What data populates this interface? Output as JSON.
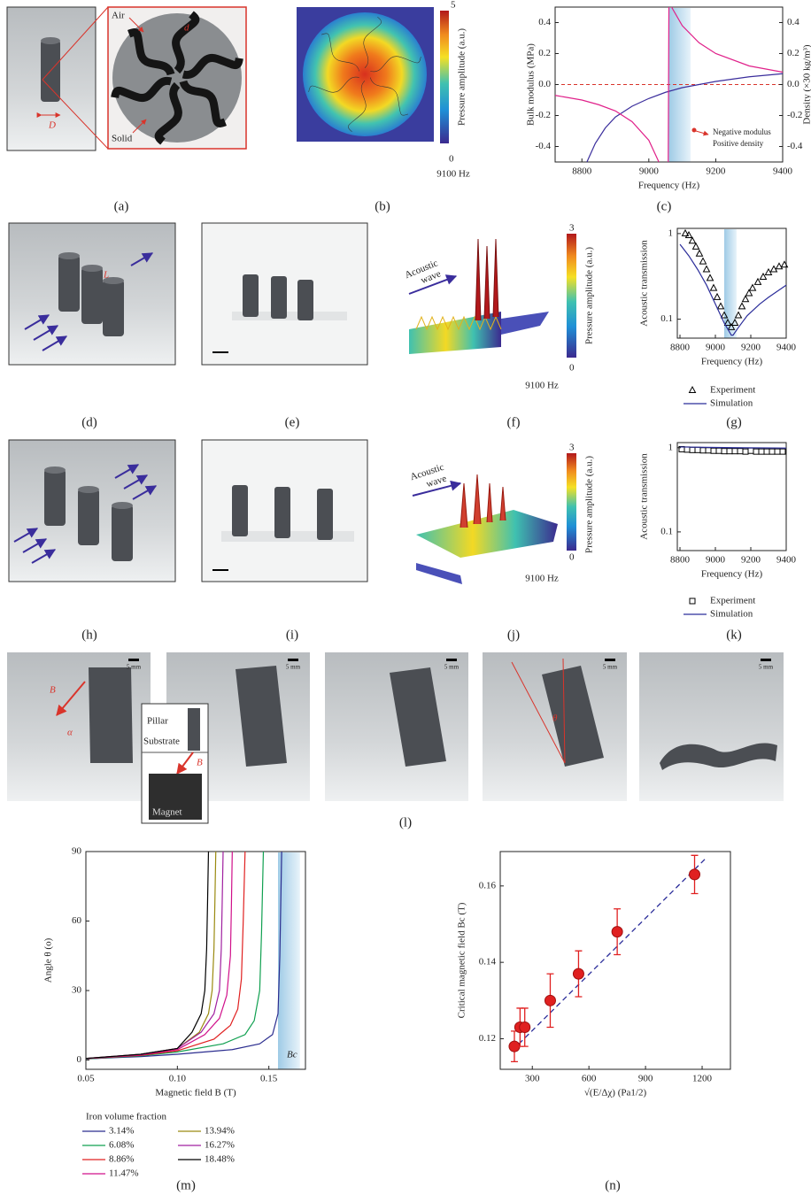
{
  "panel_labels": [
    "(a)",
    "(b)",
    "(c)",
    "(d)",
    "(e)",
    "(f)",
    "(g)",
    "(h)",
    "(i)",
    "(j)",
    "(k)",
    "(l)",
    "(m)",
    "(n)"
  ],
  "annotations": {
    "air": "Air",
    "solid": "Solid",
    "D": "D",
    "d": "d",
    "L": "L",
    "B": "B",
    "alpha": "α",
    "theta": "θ",
    "scale": "5 mm",
    "pillar": "Pillar",
    "substrate": "Substrate",
    "magnet": "Magnet",
    "acoustic": "Acoustic",
    "wave": "wave"
  },
  "colorbars": [
    {
      "max": 5,
      "min": 0,
      "label": "Pressure amplitude (a.u.)",
      "caption": "9100 Hz"
    },
    {
      "max": 3,
      "min": 0,
      "label": "Pressure amplitude (a.u.)",
      "caption": "9100 Hz"
    },
    {
      "max": 3,
      "min": 0,
      "label": "Pressure amplitude (a.u.)",
      "caption": "9100 Hz"
    }
  ],
  "chart_data": [
    {
      "type": "line",
      "xlabel": "Frequency (Hz)",
      "ylabel": "Bulk modulus (MPa)",
      "y2label": "Density (×30 kg/m³)",
      "xlim": [
        8720,
        9400
      ],
      "xticks": [
        8800,
        9000,
        9200,
        9400
      ],
      "ylim": [
        -0.5,
        0.5
      ],
      "yticks": [
        -0.4,
        -0.2,
        {
          "value": 0,
          "label": "0.0"
        },
        0.2,
        0.4
      ],
      "y2lim": [
        -0.5,
        0.5
      ],
      "y2ticks": [
        -0.4,
        -0.2,
        {
          "value": 0,
          "label": "0.0"
        },
        0.2,
        0.4
      ],
      "band": [
        9060,
        9125
      ],
      "hline": 0,
      "annotations": [
        "Negative modulus",
        "Positive density"
      ],
      "series": [
        {
          "color": "#3a2d9c",
          "x": [
            8815,
            8840,
            8870,
            8900,
            8950,
            9000,
            9050,
            9100,
            9150,
            9200,
            9300,
            9400
          ],
          "values": [
            -0.5,
            -0.38,
            -0.28,
            -0.21,
            -0.14,
            -0.09,
            -0.05,
            -0.02,
            0.0,
            0.02,
            0.05,
            0.07
          ]
        },
        {
          "color": "#e0218a",
          "axis": "y2",
          "x": [
            8720,
            8800,
            8850,
            8900,
            8950,
            9000,
            9030,
            9045,
            9058,
            9060,
            9064,
            9068,
            9100,
            9150,
            9200,
            9300,
            9400
          ],
          "values": [
            -0.07,
            -0.1,
            -0.13,
            -0.17,
            -0.24,
            -0.36,
            -0.5,
            null,
            -0.5,
            0.5,
            null,
            0.5,
            0.38,
            0.27,
            0.2,
            0.12,
            0.08
          ]
        }
      ]
    },
    {
      "type": "line",
      "log_y": true,
      "xlabel": "Frequency (Hz)",
      "ylabel": "Acoustic transmission",
      "xlim": [
        8785,
        9400
      ],
      "xticks": [
        8800,
        9000,
        9200,
        9400
      ],
      "ylim": [
        0.06,
        1.15
      ],
      "yticks": [
        0.1,
        1
      ],
      "band": [
        9050,
        9120
      ],
      "series": [
        {
          "name": "Experiment",
          "color": "#000000",
          "markers": "triangle",
          "x": [
            8830,
            8850,
            8870,
            8890,
            8910,
            8930,
            8950,
            8970,
            8990,
            9010,
            9030,
            9050,
            9070,
            9090,
            9110,
            9130,
            9150,
            9170,
            9190,
            9210,
            9240,
            9270,
            9300,
            9330,
            9360,
            9390
          ],
          "values": [
            1.0,
            0.95,
            0.82,
            0.7,
            0.58,
            0.47,
            0.38,
            0.3,
            0.23,
            0.18,
            0.14,
            0.11,
            0.09,
            0.08,
            0.09,
            0.11,
            0.14,
            0.17,
            0.2,
            0.23,
            0.27,
            0.31,
            0.35,
            0.38,
            0.41,
            0.43
          ]
        },
        {
          "name": "Simulation",
          "color": "#2b2d9a",
          "x": [
            8800,
            8850,
            8900,
            8950,
            9000,
            9050,
            9090,
            9100,
            9130,
            9180,
            9250,
            9300,
            9400
          ],
          "values": [
            0.75,
            0.55,
            0.38,
            0.25,
            0.15,
            0.09,
            0.065,
            0.065,
            0.08,
            0.11,
            0.15,
            0.18,
            0.25
          ]
        }
      ]
    },
    {
      "type": "line",
      "log_y": true,
      "xlabel": "Frequency (Hz)",
      "ylabel": "Acoustic transmission",
      "xlim": [
        8785,
        9400
      ],
      "xticks": [
        8800,
        9000,
        9200,
        9400
      ],
      "ylim": [
        0.06,
        1.15
      ],
      "yticks": [
        0.1,
        1
      ],
      "series": [
        {
          "name": "Experiment",
          "color": "#000000",
          "markers": "square",
          "x": [
            8810,
            8840,
            8870,
            8900,
            8930,
            8960,
            8990,
            9020,
            9050,
            9080,
            9110,
            9140,
            9170,
            9200,
            9230,
            9260,
            9290,
            9320,
            9350,
            9380
          ],
          "values": [
            0.96,
            0.95,
            0.94,
            0.94,
            0.93,
            0.93,
            0.92,
            0.92,
            0.91,
            0.91,
            0.91,
            0.91,
            0.9,
            0.92,
            0.9,
            0.9,
            0.9,
            0.9,
            0.9,
            0.9
          ]
        },
        {
          "name": "Simulation",
          "color": "#2b2d9a",
          "x": [
            8800,
            9100,
            9400
          ],
          "values": [
            1.02,
            1.0,
            0.99
          ]
        }
      ]
    },
    {
      "type": "line",
      "xlabel": "Magnetic field B (T)",
      "ylabel": "Angle θ (o)",
      "legend_title": "Iron volume fraction",
      "xlim": [
        0.05,
        0.17
      ],
      "xticks": [
        0.05,
        {
          "value": 0.1,
          "label": "0.10"
        },
        0.15
      ],
      "ylim": [
        -4,
        90
      ],
      "yticks": [
        0,
        30,
        60,
        90
      ],
      "band": [
        0.155,
        0.167
      ],
      "band_label": "Bc",
      "series": [
        {
          "name": "3.14%",
          "color": "#2b2d8f",
          "x": [
            0.05,
            0.08,
            0.1,
            0.13,
            0.145,
            0.152,
            0.155,
            0.156,
            0.157
          ],
          "values": [
            0.5,
            1.5,
            2.5,
            4.5,
            7,
            11,
            20,
            45,
            90
          ]
        },
        {
          "name": "6.08%",
          "color": "#10a050",
          "x": [
            0.05,
            0.08,
            0.1,
            0.125,
            0.137,
            0.142,
            0.145,
            0.146,
            0.147
          ],
          "values": [
            0.5,
            1.8,
            3.5,
            7,
            11,
            17,
            30,
            55,
            90
          ]
        },
        {
          "name": "8.86%",
          "color": "#e02020",
          "x": [
            0.05,
            0.08,
            0.1,
            0.12,
            0.129,
            0.133,
            0.135,
            0.136,
            0.137
          ],
          "values": [
            0.6,
            2,
            4,
            9,
            15,
            22,
            35,
            60,
            90
          ]
        },
        {
          "name": "11.47%",
          "color": "#d0108a",
          "x": [
            0.05,
            0.08,
            0.1,
            0.115,
            0.123,
            0.127,
            0.129,
            0.1295,
            0.13
          ],
          "values": [
            0.6,
            2.2,
            4.5,
            11,
            18,
            28,
            45,
            65,
            90
          ]
        },
        {
          "name": "13.94%",
          "color": "#9a8a10",
          "x": [
            0.05,
            0.08,
            0.1,
            0.112,
            0.117,
            0.119,
            0.12,
            0.1205,
            0.121
          ],
          "values": [
            0.7,
            2.5,
            5,
            12,
            20,
            30,
            48,
            68,
            90
          ]
        },
        {
          "name": "16.27%",
          "color": "#a020a0",
          "x": [
            0.05,
            0.08,
            0.1,
            0.113,
            0.12,
            0.123,
            0.124,
            0.1245,
            0.125
          ],
          "values": [
            0.7,
            2.5,
            5,
            12,
            20,
            30,
            48,
            68,
            90
          ]
        },
        {
          "name": "18.48%",
          "color": "#000000",
          "x": [
            0.05,
            0.08,
            0.1,
            0.108,
            0.113,
            0.115,
            0.116,
            0.1165,
            0.117
          ],
          "values": [
            0.7,
            2.5,
            5,
            12,
            20,
            30,
            48,
            68,
            90
          ]
        }
      ]
    },
    {
      "type": "scatter",
      "xlabel": "√(E/Δχ)   (Pa1/2)",
      "ylabel": "Critical magnetic field Bc (T)",
      "xlim": [
        130,
        1350
      ],
      "xticks": [
        300,
        600,
        900,
        1200
      ],
      "ylim": [
        0.112,
        0.169
      ],
      "yticks": [
        0.12,
        0.14,
        0.16
      ],
      "fit": {
        "x": [
          195,
          1215
        ],
        "values": [
          0.117,
          0.167
        ]
      },
      "series": [
        {
          "color": "#e02020",
          "x": [
            205,
            235,
            260,
            395,
            545,
            750,
            1160
          ],
          "values": [
            0.118,
            0.123,
            0.123,
            0.13,
            0.137,
            0.148,
            0.163
          ],
          "errors": [
            0.004,
            0.005,
            0.005,
            0.007,
            0.006,
            0.006,
            0.005
          ]
        }
      ]
    }
  ]
}
